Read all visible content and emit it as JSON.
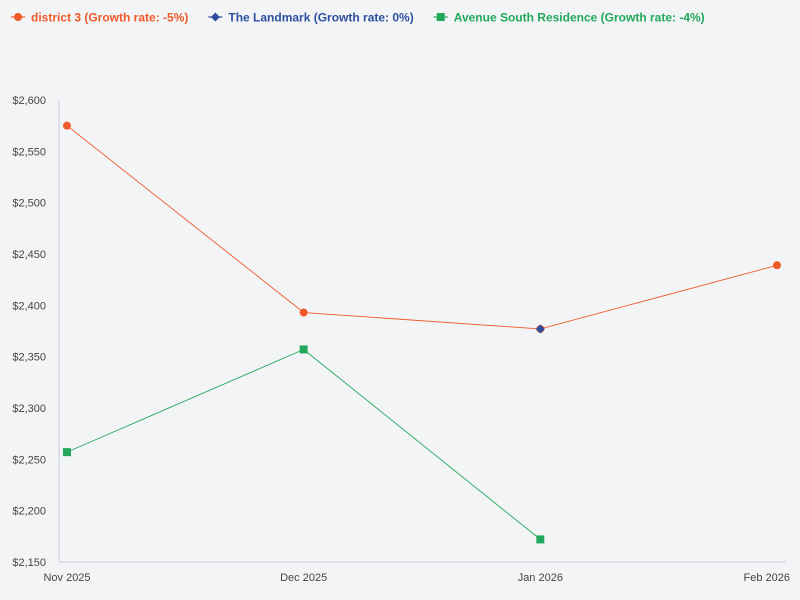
{
  "chart_data": {
    "type": "line",
    "categories": [
      "Nov 2025",
      "Dec 2025",
      "Jan 2026",
      "Feb 2026"
    ],
    "series": [
      {
        "name": "district 3 (Growth rate: -5%)",
        "values": [
          2575,
          2393,
          2377,
          2439
        ],
        "color": "#f05a28",
        "marker": "circle"
      },
      {
        "name": "The Landmark (Growth rate: 0%)",
        "values": [
          null,
          null,
          2377,
          null
        ],
        "color": "#2d4f9e",
        "marker": "diamond"
      },
      {
        "name": "Avenue South Residence (Growth rate: -4%)",
        "values": [
          2257,
          2357,
          2172,
          null
        ],
        "color": "#21a85a",
        "marker": "square"
      }
    ],
    "yticks": [
      "$2,150",
      "$2,200",
      "$2,250",
      "$2,300",
      "$2,350",
      "$2,400",
      "$2,450",
      "$2,500",
      "$2,550",
      "$2,600"
    ],
    "ylim": [
      2150,
      2600
    ],
    "legend_position": "top-left",
    "grid": false
  }
}
